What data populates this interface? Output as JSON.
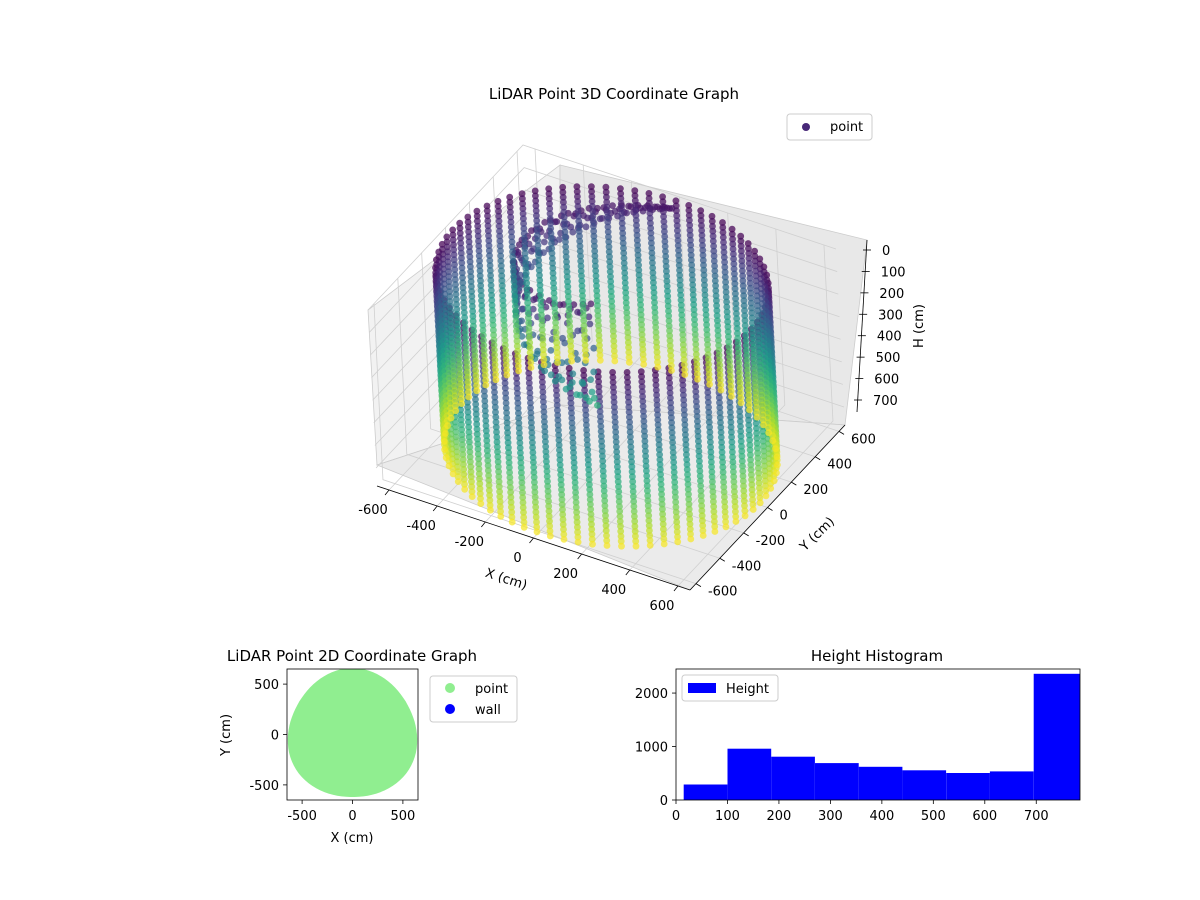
{
  "chart_data": [
    {
      "type": "scatter",
      "projection": "3d",
      "title": "LiDAR Point 3D Coordinate Graph",
      "xlabel": "X (cm)",
      "ylabel": "Y (cm)",
      "zlabel": "H (cm)",
      "xlim": [
        -650,
        650
      ],
      "ylim": [
        -650,
        650
      ],
      "zlim": [
        0,
        780
      ],
      "z_inverted": true,
      "xticks": [
        "-600",
        "-400",
        "-200",
        "0",
        "200",
        "400",
        "600"
      ],
      "yticks": [
        "-600",
        "-400",
        "-200",
        "0",
        "200",
        "400",
        "600"
      ],
      "zticks": [
        "0",
        "100",
        "200",
        "300",
        "400",
        "500",
        "600",
        "700"
      ],
      "grid": true,
      "legend": {
        "placement": "top-right",
        "entries": [
          "point"
        ]
      },
      "colormap": "viridis",
      "color_by": "height",
      "legend_color": "#482878",
      "series": [
        {
          "name": "point",
          "shape": "cylindrical-wall",
          "radius_cm": 620,
          "columns": 72,
          "h_min": 0,
          "h_max": 780,
          "ceiling_sweep": {
            "h_range": [
              40,
              500
            ],
            "note": "diagonal spiral points near ceiling"
          }
        }
      ]
    },
    {
      "type": "scatter",
      "title": "LiDAR Point 2D Coordinate Graph",
      "xlabel": "X (cm)",
      "ylabel": "Y (cm)",
      "xlim": [
        -650,
        650
      ],
      "ylim": [
        -650,
        650
      ],
      "xticks": [
        "-500",
        "0",
        "500"
      ],
      "yticks": [
        "-500",
        "0",
        "500"
      ],
      "legend": {
        "placement": "outside-right",
        "entries": [
          "point",
          "wall"
        ]
      },
      "series": [
        {
          "name": "point",
          "color": "#90ee90",
          "shape": "filled-disc",
          "radius_cm": 640
        },
        {
          "name": "wall",
          "color": "#0000ff",
          "shape": "none-visible"
        }
      ]
    },
    {
      "type": "histogram",
      "title": "Height Histogram",
      "xlim": [
        0,
        785
      ],
      "ylim": [
        0,
        2450
      ],
      "xticks": [
        "0",
        "100",
        "200",
        "300",
        "400",
        "500",
        "600",
        "700"
      ],
      "yticks": [
        "0",
        "1000",
        "2000"
      ],
      "legend": {
        "placement": "top-left",
        "entries": [
          "Height"
        ]
      },
      "color": "#0000ff",
      "series": [
        {
          "name": "Height",
          "bin_edges": [
            15,
            100,
            185,
            270,
            355,
            440,
            525,
            610,
            695,
            785
          ],
          "counts": [
            290,
            960,
            810,
            690,
            620,
            555,
            505,
            535,
            2360
          ]
        }
      ]
    }
  ]
}
